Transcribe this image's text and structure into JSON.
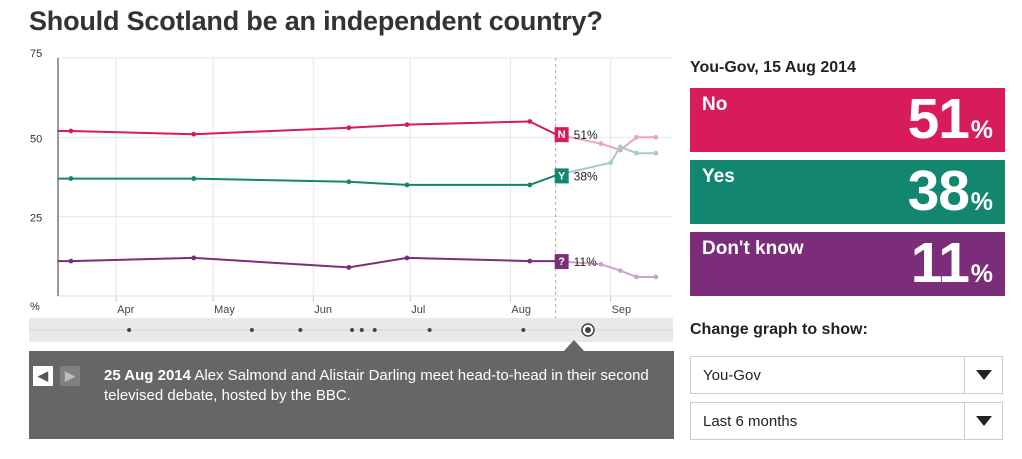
{
  "title": "Should Scotland be an independent country?",
  "chart_data": {
    "type": "line",
    "y_unit_label": "%",
    "yticks": [
      25,
      50,
      75
    ],
    "ylim": [
      0,
      75
    ],
    "x_start": "2014-03-14",
    "x_end": "2014-09-20",
    "month_labels": [
      {
        "label": "Apr",
        "date": "2014-04-01"
      },
      {
        "label": "May",
        "date": "2014-05-01"
      },
      {
        "label": "Jun",
        "date": "2014-06-01"
      },
      {
        "label": "Jul",
        "date": "2014-07-01"
      },
      {
        "label": "Aug",
        "date": "2014-08-01"
      },
      {
        "label": "Sep",
        "date": "2014-09-01"
      }
    ],
    "selected_date": "2014-08-15",
    "grid": true,
    "series": [
      {
        "key": "no",
        "marker": "N",
        "color": "#d81b5c",
        "faded_color": "#eaa5bd",
        "end_label": "51%",
        "points": [
          [
            "2014-03-14",
            52
          ],
          [
            "2014-03-18",
            52
          ],
          [
            "2014-04-25",
            51
          ],
          [
            "2014-06-12",
            53
          ],
          [
            "2014-06-30",
            54
          ],
          [
            "2014-08-07",
            55
          ],
          [
            "2014-08-15",
            51
          ]
        ],
        "after": [
          [
            "2014-08-15",
            51
          ],
          [
            "2014-08-29",
            48
          ],
          [
            "2014-09-04",
            46
          ],
          [
            "2014-09-09",
            50
          ],
          [
            "2014-09-15",
            50
          ]
        ]
      },
      {
        "key": "yes",
        "marker": "Y",
        "color": "#13866f",
        "faded_color": "#9fcfc5",
        "end_label": "38%",
        "points": [
          [
            "2014-03-14",
            37
          ],
          [
            "2014-03-18",
            37
          ],
          [
            "2014-04-25",
            37
          ],
          [
            "2014-06-12",
            36
          ],
          [
            "2014-06-30",
            35
          ],
          [
            "2014-08-07",
            35
          ],
          [
            "2014-08-15",
            38
          ]
        ],
        "after": [
          [
            "2014-08-15",
            38
          ],
          [
            "2014-09-01",
            42
          ],
          [
            "2014-09-04",
            47
          ],
          [
            "2014-09-09",
            45
          ],
          [
            "2014-09-15",
            45
          ]
        ]
      },
      {
        "key": "dont_know",
        "marker": "?",
        "color": "#7b2d7a",
        "faded_color": "#c9a5c9",
        "end_label": "11%",
        "points": [
          [
            "2014-03-14",
            11
          ],
          [
            "2014-03-18",
            11
          ],
          [
            "2014-04-25",
            12
          ],
          [
            "2014-06-12",
            9
          ],
          [
            "2014-06-30",
            12
          ],
          [
            "2014-08-07",
            11
          ],
          [
            "2014-08-15",
            11
          ]
        ],
        "after": [
          [
            "2014-08-15",
            11
          ],
          [
            "2014-08-29",
            10
          ],
          [
            "2014-09-04",
            8
          ],
          [
            "2014-09-09",
            6
          ],
          [
            "2014-09-15",
            6
          ]
        ]
      }
    ],
    "timeline_events": [
      "2014-04-05",
      "2014-05-13",
      "2014-05-28",
      "2014-06-13",
      "2014-06-16",
      "2014-06-20",
      "2014-07-07",
      "2014-08-05"
    ],
    "timeline_selected": "2014-08-25"
  },
  "event": {
    "date": "25 Aug 2014",
    "text": " Alex Salmond and Alistair Darling meet head-to-head in their second televised debate, hosted by the BBC.",
    "prev_label": "◀",
    "next_label": "▶"
  },
  "poll": {
    "header": "You-Gov, 15 Aug 2014",
    "results": [
      {
        "label": "No",
        "value": "51",
        "pct": "%",
        "color": "#d81b5c"
      },
      {
        "label": "Yes",
        "value": "38",
        "pct": "%",
        "color": "#13866f"
      },
      {
        "label": "Don't know",
        "value": "11",
        "pct": "%",
        "color": "#7b2d7a"
      }
    ]
  },
  "controls": {
    "label": "Change graph to show:",
    "pollster": "You-Gov",
    "period": "Last 6 months"
  }
}
